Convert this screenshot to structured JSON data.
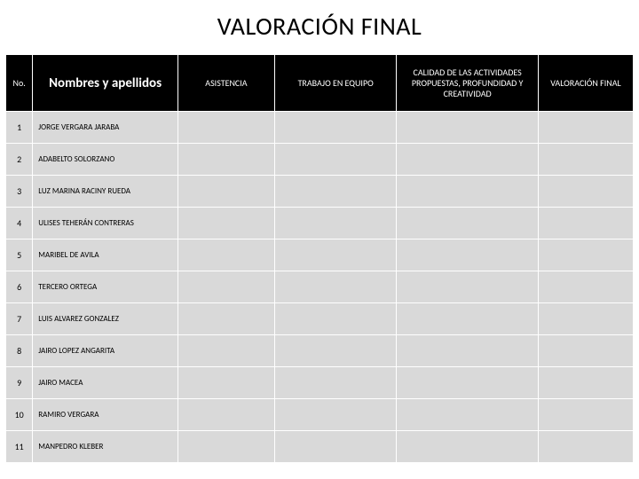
{
  "title": "VALORACIÓN FINAL",
  "headers": {
    "no": "No.",
    "name": "Nombres y apellidos",
    "asist": "ASISTENCIA",
    "trabajo": "TRABAJO EN EQUIPO",
    "calidad": "CALIDAD DE LAS ACTIVIDADES PROPUESTAS, PROFUNDIDAD Y CREATIVIDAD",
    "valor": "VALORACIÓN FINAL"
  },
  "rows": [
    {
      "no": "1",
      "name": "JORGE VERGARA JARABA"
    },
    {
      "no": "2",
      "name": "ADABELTO SOLORZANO"
    },
    {
      "no": "3",
      "name": "LUZ MARINA RACINY RUEDA"
    },
    {
      "no": "4",
      "name": "ULISES TEHERÁN CONTRERAS"
    },
    {
      "no": "5",
      "name": "MARIBEL DE AVILA"
    },
    {
      "no": "6",
      "name": "TERCERO ORTEGA"
    },
    {
      "no": "7",
      "name": "LUIS ALVAREZ GONZALEZ"
    },
    {
      "no": "8",
      "name": "JAIRO LOPEZ ANGARITA"
    },
    {
      "no": "9",
      "name": "JAIRO MACEA"
    },
    {
      "no": "10",
      "name": "RAMIRO VERGARA"
    },
    {
      "no": "11",
      "name": "MANPEDRO KLEBER"
    }
  ],
  "colors": {
    "header_bg": "#000000",
    "header_text": "#ffffff",
    "cell_bg": "#d9d9d9",
    "cell_text": "#000000",
    "border": "#ffffff",
    "page_bg": "#ffffff"
  }
}
